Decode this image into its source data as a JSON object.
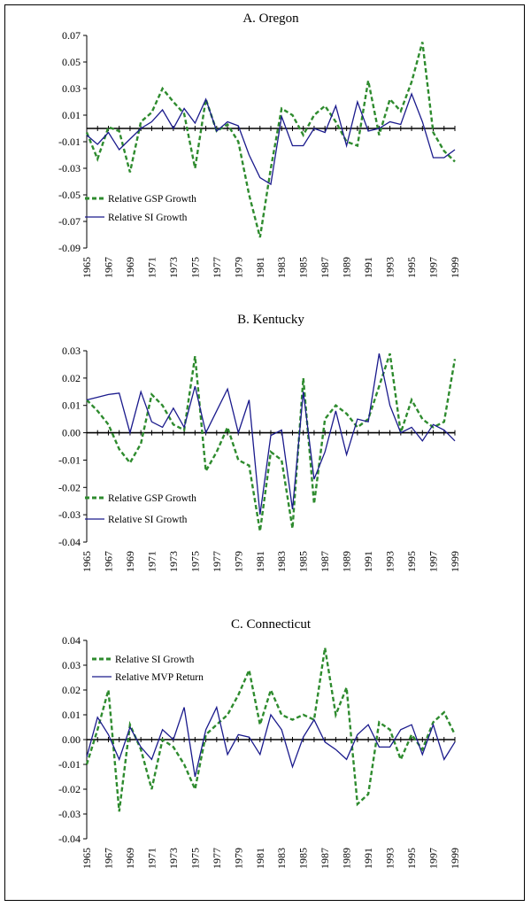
{
  "chart_data": [
    {
      "type": "line",
      "title": "A. Oregon",
      "x": [
        1965,
        1966,
        1967,
        1968,
        1969,
        1970,
        1971,
        1972,
        1973,
        1974,
        1975,
        1976,
        1977,
        1978,
        1979,
        1980,
        1981,
        1982,
        1983,
        1984,
        1985,
        1986,
        1987,
        1988,
        1989,
        1990,
        1991,
        1992,
        1993,
        1994,
        1995,
        1996,
        1997,
        1998,
        1999
      ],
      "x_tick_labels": [
        "1965",
        "1967",
        "1969",
        "1971",
        "1973",
        "1975",
        "1977",
        "1979",
        "1981",
        "1983",
        "1985",
        "1987",
        "1989",
        "1991",
        "1993",
        "1995",
        "1997",
        "1999"
      ],
      "y_tick_labels": [
        "0.07",
        "0.05",
        "0.03",
        "0.01",
        "-0.01",
        "-0.03",
        "-0.05",
        "-0.07",
        "-0.09"
      ],
      "ylim": [
        -0.09,
        0.07
      ],
      "series": [
        {
          "name": "Relative GSP Growth",
          "color": "#2e8b2e",
          "style": "dashed",
          "values": [
            -0.003,
            -0.023,
            0.001,
            -0.002,
            -0.033,
            0.005,
            0.012,
            0.03,
            0.02,
            0.011,
            -0.03,
            0.022,
            -0.002,
            0.003,
            -0.01,
            -0.05,
            -0.082,
            -0.03,
            0.015,
            0.01,
            -0.005,
            0.01,
            0.017,
            0.005,
            -0.01,
            -0.013,
            0.036,
            -0.005,
            0.022,
            0.013,
            0.035,
            0.065,
            -0.003,
            -0.017,
            -0.025
          ]
        },
        {
          "name": "Relative SI Growth",
          "color": "#1a1a8c",
          "style": "solid",
          "values": [
            -0.005,
            -0.012,
            -0.003,
            -0.016,
            -0.008,
            0.0,
            0.005,
            0.014,
            0.0,
            0.015,
            0.004,
            0.022,
            -0.002,
            0.005,
            0.002,
            -0.02,
            -0.037,
            -0.042,
            0.009,
            -0.013,
            -0.013,
            0.0,
            -0.003,
            0.017,
            -0.013,
            0.02,
            -0.002,
            0.0,
            0.005,
            0.003,
            0.026,
            0.005,
            -0.022,
            -0.022,
            -0.016
          ]
        }
      ],
      "legend_position": "bottom-left"
    },
    {
      "type": "line",
      "title": "B. Kentucky",
      "x": [
        1965,
        1966,
        1967,
        1968,
        1969,
        1970,
        1971,
        1972,
        1973,
        1974,
        1975,
        1976,
        1977,
        1978,
        1979,
        1980,
        1981,
        1982,
        1983,
        1984,
        1985,
        1986,
        1987,
        1988,
        1989,
        1990,
        1991,
        1992,
        1993,
        1994,
        1995,
        1996,
        1997,
        1998,
        1999
      ],
      "x_tick_labels": [
        "1965",
        "1967",
        "1969",
        "1971",
        "1973",
        "1975",
        "1977",
        "1979",
        "1981",
        "1983",
        "1985",
        "1987",
        "1989",
        "1991",
        "1993",
        "1995",
        "1997",
        "1999"
      ],
      "y_tick_labels": [
        "0.03",
        "0.02",
        "0.01",
        "0.00",
        "-0.01",
        "-0.02",
        "-0.03",
        "-0.04"
      ],
      "ylim": [
        -0.04,
        0.03
      ],
      "series": [
        {
          "name": "Relative GSP Growth",
          "color": "#2e8b2e",
          "style": "dashed",
          "values": [
            0.012,
            0.008,
            0.003,
            -0.006,
            -0.011,
            -0.004,
            0.014,
            0.01,
            0.003,
            0.001,
            0.028,
            -0.014,
            -0.007,
            0.002,
            -0.01,
            -0.012,
            -0.036,
            -0.007,
            -0.01,
            -0.035,
            0.02,
            -0.026,
            0.005,
            0.01,
            0.007,
            0.002,
            0.005,
            0.017,
            0.029,
            0.0,
            0.012,
            0.005,
            0.002,
            0.004,
            0.027
          ]
        },
        {
          "name": "Relative SI Growth",
          "color": "#1a1a8c",
          "style": "solid",
          "values": [
            0.012,
            0.013,
            0.014,
            0.0145,
            0.0,
            0.015,
            0.004,
            0.002,
            0.009,
            0.002,
            0.017,
            0.0,
            0.008,
            0.016,
            0.0,
            0.012,
            -0.03,
            -0.001,
            0.001,
            -0.028,
            0.015,
            -0.017,
            -0.007,
            0.008,
            -0.008,
            0.005,
            0.004,
            0.029,
            0.01,
            0.0,
            0.002,
            -0.003,
            0.003,
            0.001,
            -0.003
          ]
        }
      ],
      "legend_position": "bottom-left"
    },
    {
      "type": "line",
      "title": "C. Connecticut",
      "x": [
        1965,
        1966,
        1967,
        1968,
        1969,
        1970,
        1971,
        1972,
        1973,
        1974,
        1975,
        1976,
        1977,
        1978,
        1979,
        1980,
        1981,
        1982,
        1983,
        1984,
        1985,
        1986,
        1987,
        1988,
        1989,
        1990,
        1991,
        1992,
        1993,
        1994,
        1995,
        1996,
        1997,
        1998,
        1999
      ],
      "x_tick_labels": [
        "1965",
        "1967",
        "1969",
        "1971",
        "1973",
        "1975",
        "1977",
        "1979",
        "1981",
        "1983",
        "1985",
        "1987",
        "1989",
        "1991",
        "1993",
        "1995",
        "1997",
        "1999"
      ],
      "y_tick_labels": [
        "0.04",
        "0.03",
        "0.02",
        "0.01",
        "0.00",
        "-0.01",
        "-0.02",
        "-0.03",
        "-0.04"
      ],
      "ylim": [
        -0.04,
        0.04
      ],
      "series": [
        {
          "name": "Relative SI Growth",
          "color": "#2e8b2e",
          "style": "dashed",
          "values": [
            -0.01,
            0.004,
            0.02,
            -0.029,
            0.006,
            -0.004,
            -0.02,
            0.0,
            -0.003,
            -0.01,
            -0.02,
            0.002,
            0.006,
            0.01,
            0.018,
            0.028,
            0.006,
            0.02,
            0.01,
            0.008,
            0.01,
            0.008,
            0.037,
            0.01,
            0.021,
            -0.026,
            -0.022,
            0.007,
            0.004,
            -0.008,
            0.002,
            -0.004,
            0.007,
            0.011,
            0.002
          ]
        },
        {
          "name": "Relative MVP Return",
          "color": "#1a1a8c",
          "style": "solid",
          "values": [
            -0.007,
            0.009,
            0.002,
            -0.008,
            0.005,
            -0.003,
            -0.008,
            0.004,
            0.0,
            0.013,
            -0.015,
            0.004,
            0.013,
            -0.006,
            0.002,
            0.001,
            -0.006,
            0.01,
            0.004,
            -0.011,
            0.001,
            0.008,
            -0.001,
            -0.004,
            -0.008,
            0.002,
            0.006,
            -0.003,
            -0.003,
            0.004,
            0.006,
            -0.006,
            0.006,
            -0.008,
            -0.001
          ]
        }
      ],
      "legend_position": "top-left"
    }
  ]
}
